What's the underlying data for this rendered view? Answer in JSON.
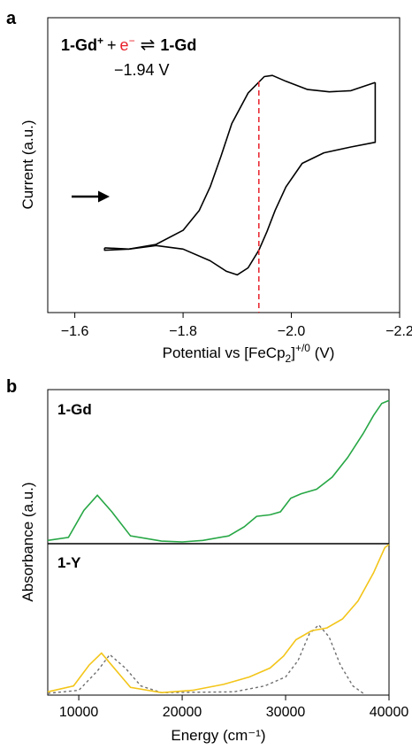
{
  "chart_data": [
    {
      "panel_letter": "a",
      "type": "line",
      "xlabel_main": "Potential vs [FeCp",
      "xlabel_sub": "2",
      "xlabel_sup": "]",
      "xlabel_sup2": "+/0",
      "xlabel_tail": " (V)",
      "ylabel": "Current (a.u.)",
      "xlim": [
        -1.6,
        -2.2
      ],
      "x_ticks": [
        -1.6,
        -1.8,
        -2.0,
        -2.2
      ],
      "x_tick_labels": [
        "−1.6",
        "−1.8",
        "−2.0",
        "−2.2"
      ],
      "equation": {
        "left_species": "1-Gd",
        "left_sup": "+",
        "plus": "+",
        "electron": "e",
        "electron_sup": "−",
        "arrow": "⇌",
        "right_species": "1-Gd"
      },
      "annotation_potential": "−1.94 V",
      "marker_potential": -1.94,
      "scan_direction": "toward negative potential",
      "colors": {
        "trace": "#000000",
        "marker": "#e8202a"
      },
      "series": [
        {
          "name": "forward scan",
          "points": [
            [
              -1.655,
              0.17
            ],
            [
              -1.7,
              0.165
            ],
            [
              -1.75,
              0.185
            ],
            [
              -1.8,
              0.245
            ],
            [
              -1.83,
              0.33
            ],
            [
              -1.85,
              0.43
            ],
            [
              -1.87,
              0.56
            ],
            [
              -1.89,
              0.7
            ],
            [
              -1.92,
              0.83
            ],
            [
              -1.95,
              0.9
            ],
            [
              -1.965,
              0.905
            ],
            [
              -1.99,
              0.88
            ],
            [
              -2.03,
              0.845
            ],
            [
              -2.07,
              0.835
            ],
            [
              -2.11,
              0.84
            ],
            [
              -2.155,
              0.875
            ]
          ]
        },
        {
          "name": "reverse scan",
          "points": [
            [
              -2.155,
              0.875
            ],
            [
              -2.155,
              0.62
            ],
            [
              -2.11,
              0.6
            ],
            [
              -2.06,
              0.575
            ],
            [
              -2.02,
              0.53
            ],
            [
              -1.99,
              0.43
            ],
            [
              -1.97,
              0.33
            ],
            [
              -1.955,
              0.24
            ],
            [
              -1.94,
              0.16
            ],
            [
              -1.92,
              0.085
            ],
            [
              -1.9,
              0.055
            ],
            [
              -1.88,
              0.07
            ],
            [
              -1.85,
              0.115
            ],
            [
              -1.8,
              0.165
            ],
            [
              -1.75,
              0.18
            ],
            [
              -1.7,
              0.165
            ],
            [
              -1.655,
              0.16
            ],
            [
              -1.655,
              0.17
            ]
          ]
        }
      ]
    },
    {
      "panel_letter": "b",
      "type": "line",
      "xlabel": "Energy (cm⁻¹)",
      "ylabel": "Absorbance (a.u.)",
      "xlim": [
        7000,
        40000
      ],
      "x_ticks": [
        10000,
        20000,
        30000,
        40000
      ],
      "x_tick_labels": [
        "10000",
        "20000",
        "30000",
        "40000"
      ],
      "colors": {
        "gd": "#27a745",
        "y": "#f3c519",
        "y_calc": "#707070"
      },
      "subpanels": [
        {
          "label": "1-Gd",
          "series": [
            {
              "name": "1-Gd",
              "points": [
                [
                  7000,
                  0.01
                ],
                [
                  9000,
                  0.03
                ],
                [
                  10500,
                  0.21
                ],
                [
                  11800,
                  0.31
                ],
                [
                  13200,
                  0.2
                ],
                [
                  15000,
                  0.04
                ],
                [
                  18000,
                  0.005
                ],
                [
                  20000,
                  0.0
                ],
                [
                  22000,
                  0.01
                ],
                [
                  24500,
                  0.04
                ],
                [
                  26000,
                  0.1
                ],
                [
                  27200,
                  0.17
                ],
                [
                  28500,
                  0.18
                ],
                [
                  29500,
                  0.2
                ],
                [
                  30500,
                  0.29
                ],
                [
                  31500,
                  0.32
                ],
                [
                  33000,
                  0.35
                ],
                [
                  34500,
                  0.43
                ],
                [
                  36000,
                  0.56
                ],
                [
                  37500,
                  0.72
                ],
                [
                  38500,
                  0.84
                ],
                [
                  39300,
                  0.92
                ],
                [
                  40000,
                  0.94
                ]
              ]
            }
          ]
        },
        {
          "label": "1-Y",
          "series": [
            {
              "name": "1-Y",
              "points": [
                [
                  7000,
                  0.01
                ],
                [
                  9500,
                  0.05
                ],
                [
                  11000,
                  0.19
                ],
                [
                  12200,
                  0.27
                ],
                [
                  13300,
                  0.18
                ],
                [
                  15000,
                  0.04
                ],
                [
                  18000,
                  0.005
                ],
                [
                  21000,
                  0.02
                ],
                [
                  24000,
                  0.06
                ],
                [
                  26500,
                  0.11
                ],
                [
                  28500,
                  0.17
                ],
                [
                  29800,
                  0.25
                ],
                [
                  31000,
                  0.36
                ],
                [
                  32500,
                  0.42
                ],
                [
                  34000,
                  0.44
                ],
                [
                  35500,
                  0.5
                ],
                [
                  37000,
                  0.62
                ],
                [
                  38500,
                  0.81
                ],
                [
                  39600,
                  0.98
                ],
                [
                  40000,
                  1.0
                ]
              ]
            },
            {
              "name": "1-Y (dashed)",
              "points": [
                [
                  7000,
                  0.0
                ],
                [
                  10000,
                  0.02
                ],
                [
                  11800,
                  0.15
                ],
                [
                  13000,
                  0.26
                ],
                [
                  14500,
                  0.17
                ],
                [
                  16000,
                  0.05
                ],
                [
                  18000,
                  0.005
                ],
                [
                  25000,
                  0.01
                ],
                [
                  28000,
                  0.05
                ],
                [
                  30000,
                  0.11
                ],
                [
                  31200,
                  0.22
                ],
                [
                  32300,
                  0.4
                ],
                [
                  33200,
                  0.46
                ],
                [
                  34200,
                  0.38
                ],
                [
                  35300,
                  0.19
                ],
                [
                  36500,
                  0.05
                ],
                [
                  37500,
                  0.0
                ]
              ]
            }
          ]
        }
      ]
    }
  ]
}
